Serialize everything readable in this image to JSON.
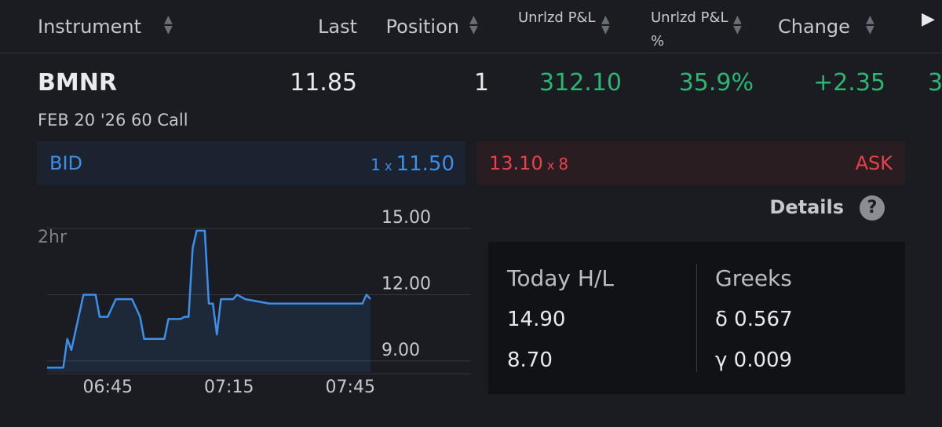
{
  "header": {
    "columns": [
      "Instrument",
      "Last",
      "Position",
      "Unrlzd P&L",
      "Unrlzd P&L %",
      "Change"
    ]
  },
  "row": {
    "symbol": "BMNR",
    "description": "FEB 20 '26 60 Call",
    "last": "11.85",
    "position": "1",
    "pnl": "312.10",
    "pnl_pct": "35.9%",
    "change": "+2.35",
    "next": "3"
  },
  "quote": {
    "bid_label": "BID",
    "bid_size": "1",
    "bid_x": "x",
    "bid_price": "11.50",
    "ask_price": "13.10",
    "ask_x": "x",
    "ask_size": "8",
    "ask_label": "ASK"
  },
  "details": {
    "label": "Details",
    "help": "?"
  },
  "stats": {
    "hl_label": "Today H/L",
    "high": "14.90",
    "low": "8.70",
    "greeks_label": "Greeks",
    "delta": "δ 0.567",
    "gamma": "γ 0.009"
  },
  "chart_data": {
    "type": "line",
    "period": "2hr",
    "color": "#3d8fe8",
    "x": [
      "06:30",
      "06:34",
      "06:35",
      "06:36",
      "06:39",
      "06:42",
      "06:43",
      "06:45",
      "06:47",
      "06:51",
      "06:53",
      "06:54",
      "06:59",
      "07:00",
      "07:03",
      "07:04",
      "07:05",
      "07:06",
      "07:07",
      "07:09",
      "07:10",
      "07:11",
      "07:12",
      "07:13",
      "07:16",
      "07:17",
      "07:19",
      "07:25",
      "07:48",
      "07:49",
      "07:50"
    ],
    "values": [
      8.7,
      8.7,
      10.0,
      9.5,
      12.0,
      12.0,
      11.0,
      11.0,
      11.8,
      11.8,
      11.0,
      10.0,
      10.0,
      10.9,
      10.9,
      11.0,
      11.0,
      14.1,
      14.9,
      14.9,
      11.6,
      11.6,
      10.2,
      11.8,
      11.8,
      12.0,
      11.8,
      11.6,
      11.6,
      12.0,
      11.8
    ],
    "xlim": [
      "06:30",
      "07:50"
    ],
    "xticks": [
      "06:45",
      "07:15",
      "07:45"
    ],
    "ylim": [
      8.5,
      15
    ],
    "yticks": [
      {
        "value": 9,
        "label": "9.00"
      },
      {
        "value": 12,
        "label": "12.00"
      },
      {
        "value": 15,
        "label": "15.00"
      }
    ],
    "grid": true
  }
}
